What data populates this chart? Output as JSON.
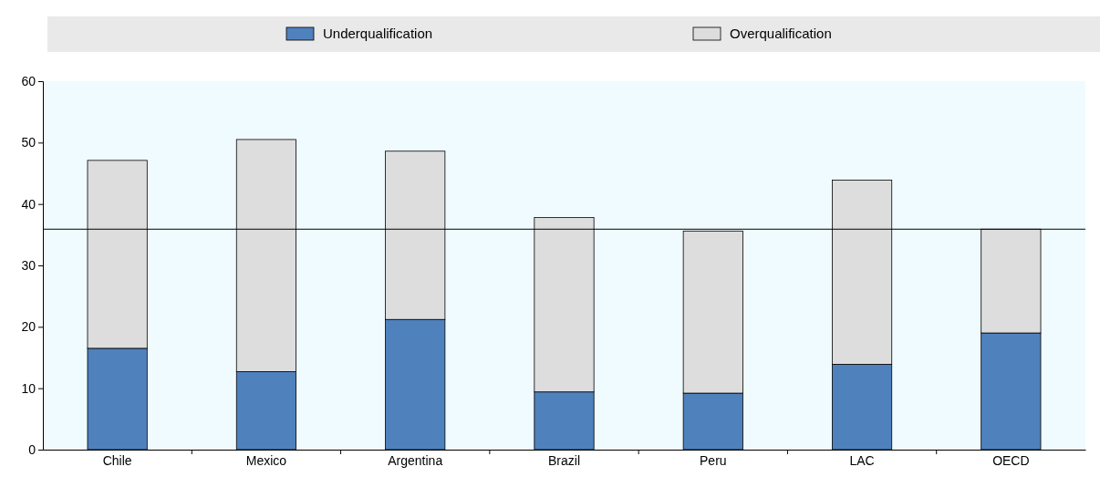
{
  "chart_data": {
    "type": "bar",
    "stacked": true,
    "categories": [
      "Chile",
      "Mexico",
      "Argentina",
      "Brazil",
      "Peru",
      "LAC",
      "OECD"
    ],
    "series": [
      {
        "name": "Underqualification",
        "color": "#4f81bd",
        "values": [
          16.5,
          12.7,
          21.2,
          9.4,
          9.2,
          13.9,
          19.0
        ]
      },
      {
        "name": "Overqualification",
        "color": "#dddddd",
        "values": [
          30.6,
          37.8,
          27.4,
          28.4,
          26.4,
          30.0,
          16.9
        ]
      }
    ],
    "ylim": [
      0,
      60
    ],
    "yticks": [
      0,
      10,
      20,
      30,
      40,
      50,
      60
    ],
    "grid": false,
    "legend": "top",
    "ref_lines": [
      {
        "axis": "y",
        "value": 35.9,
        "color": "#000000"
      }
    ]
  }
}
